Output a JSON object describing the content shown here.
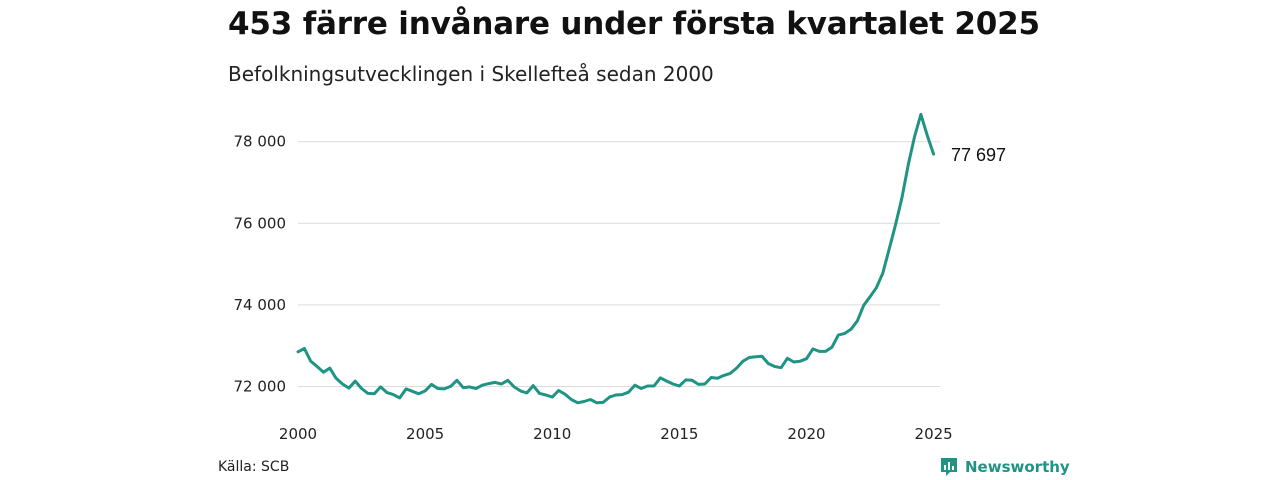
{
  "header": {
    "title": "453 färre invånare under första kvartalet 2025",
    "subtitle": "Befolkningsutvecklingen i Skellefteå sedan 2000"
  },
  "footer": {
    "source": "Källa: SCB",
    "brand": "Newsworthy"
  },
  "colors": {
    "line": "#1f9484",
    "grid": "#dcdcdc",
    "brand": "#1f9484"
  },
  "icons": {
    "brand_logo": "newsworthy-logo-icon"
  },
  "chart_data": {
    "type": "line",
    "ylim": [
      71300,
      78900
    ],
    "xlim": [
      2000.0,
      2025.25
    ],
    "y_ticks": [
      72000,
      74000,
      76000,
      78000
    ],
    "y_tick_labels": [
      "72 000",
      "74 000",
      "76 000",
      "78 000"
    ],
    "x_ticks": [
      2000,
      2005,
      2010,
      2015,
      2020,
      2025
    ],
    "x_tick_labels": [
      "2000",
      "2005",
      "2010",
      "2015",
      "2020",
      "2025"
    ],
    "grid": "horizontal",
    "end_label": "77 697",
    "series": [
      {
        "x": [
          2000.0,
          2000.25,
          2000.5,
          2000.75,
          2001.0,
          2001.25,
          2001.5,
          2001.75,
          2002.0,
          2002.25,
          2002.5,
          2002.75,
          2003.0,
          2003.25,
          2003.5,
          2003.75,
          2004.0,
          2004.25,
          2004.5,
          2004.75,
          2005.0,
          2005.25,
          2005.5,
          2005.75,
          2006.0,
          2006.25,
          2006.5,
          2006.75,
          2007.0,
          2007.25,
          2007.5,
          2007.75,
          2008.0,
          2008.25,
          2008.5,
          2008.75,
          2009.0,
          2009.25,
          2009.5,
          2009.75,
          2010.0,
          2010.25,
          2010.5,
          2010.75,
          2011.0,
          2011.25,
          2011.5,
          2011.75,
          2012.0,
          2012.25,
          2012.5,
          2012.75,
          2013.0,
          2013.25,
          2013.5,
          2013.75,
          2014.0,
          2014.25,
          2014.5,
          2014.75,
          2015.0,
          2015.25,
          2015.5,
          2015.75,
          2016.0,
          2016.25,
          2016.5,
          2016.75,
          2017.0,
          2017.25,
          2017.5,
          2017.75,
          2018.0,
          2018.25,
          2018.5,
          2018.75,
          2019.0,
          2019.25,
          2019.5,
          2019.75,
          2020.0,
          2020.25,
          2020.5,
          2020.75,
          2021.0,
          2021.25,
          2021.5,
          2021.75,
          2022.0,
          2022.25,
          2022.5,
          2022.75,
          2023.0,
          2023.25,
          2023.5,
          2023.75,
          2024.0,
          2024.25,
          2024.5,
          2024.75,
          2025.0
        ],
        "values": [
          72850,
          72930,
          72620,
          72490,
          72350,
          72450,
          72200,
          72060,
          71960,
          72130,
          71950,
          71830,
          71820,
          71990,
          71850,
          71800,
          71720,
          71940,
          71880,
          71820,
          71890,
          72050,
          71950,
          71940,
          72000,
          72150,
          71970,
          71990,
          71950,
          72030,
          72070,
          72100,
          72060,
          72150,
          71990,
          71890,
          71840,
          72020,
          71830,
          71790,
          71740,
          71900,
          71810,
          71680,
          71600,
          71630,
          71680,
          71600,
          71610,
          71740,
          71790,
          71800,
          71860,
          72030,
          71950,
          72010,
          72010,
          72210,
          72130,
          72060,
          72010,
          72160,
          72150,
          72050,
          72060,
          72220,
          72200,
          72270,
          72320,
          72450,
          72620,
          72710,
          72730,
          72740,
          72560,
          72490,
          72460,
          72690,
          72600,
          72620,
          72680,
          72920,
          72860,
          72860,
          72960,
          73260,
          73300,
          73400,
          73610,
          73990,
          74200,
          74420,
          74780,
          75360,
          75960,
          76620,
          77430,
          78130,
          78670,
          78150,
          77697
        ]
      }
    ]
  }
}
